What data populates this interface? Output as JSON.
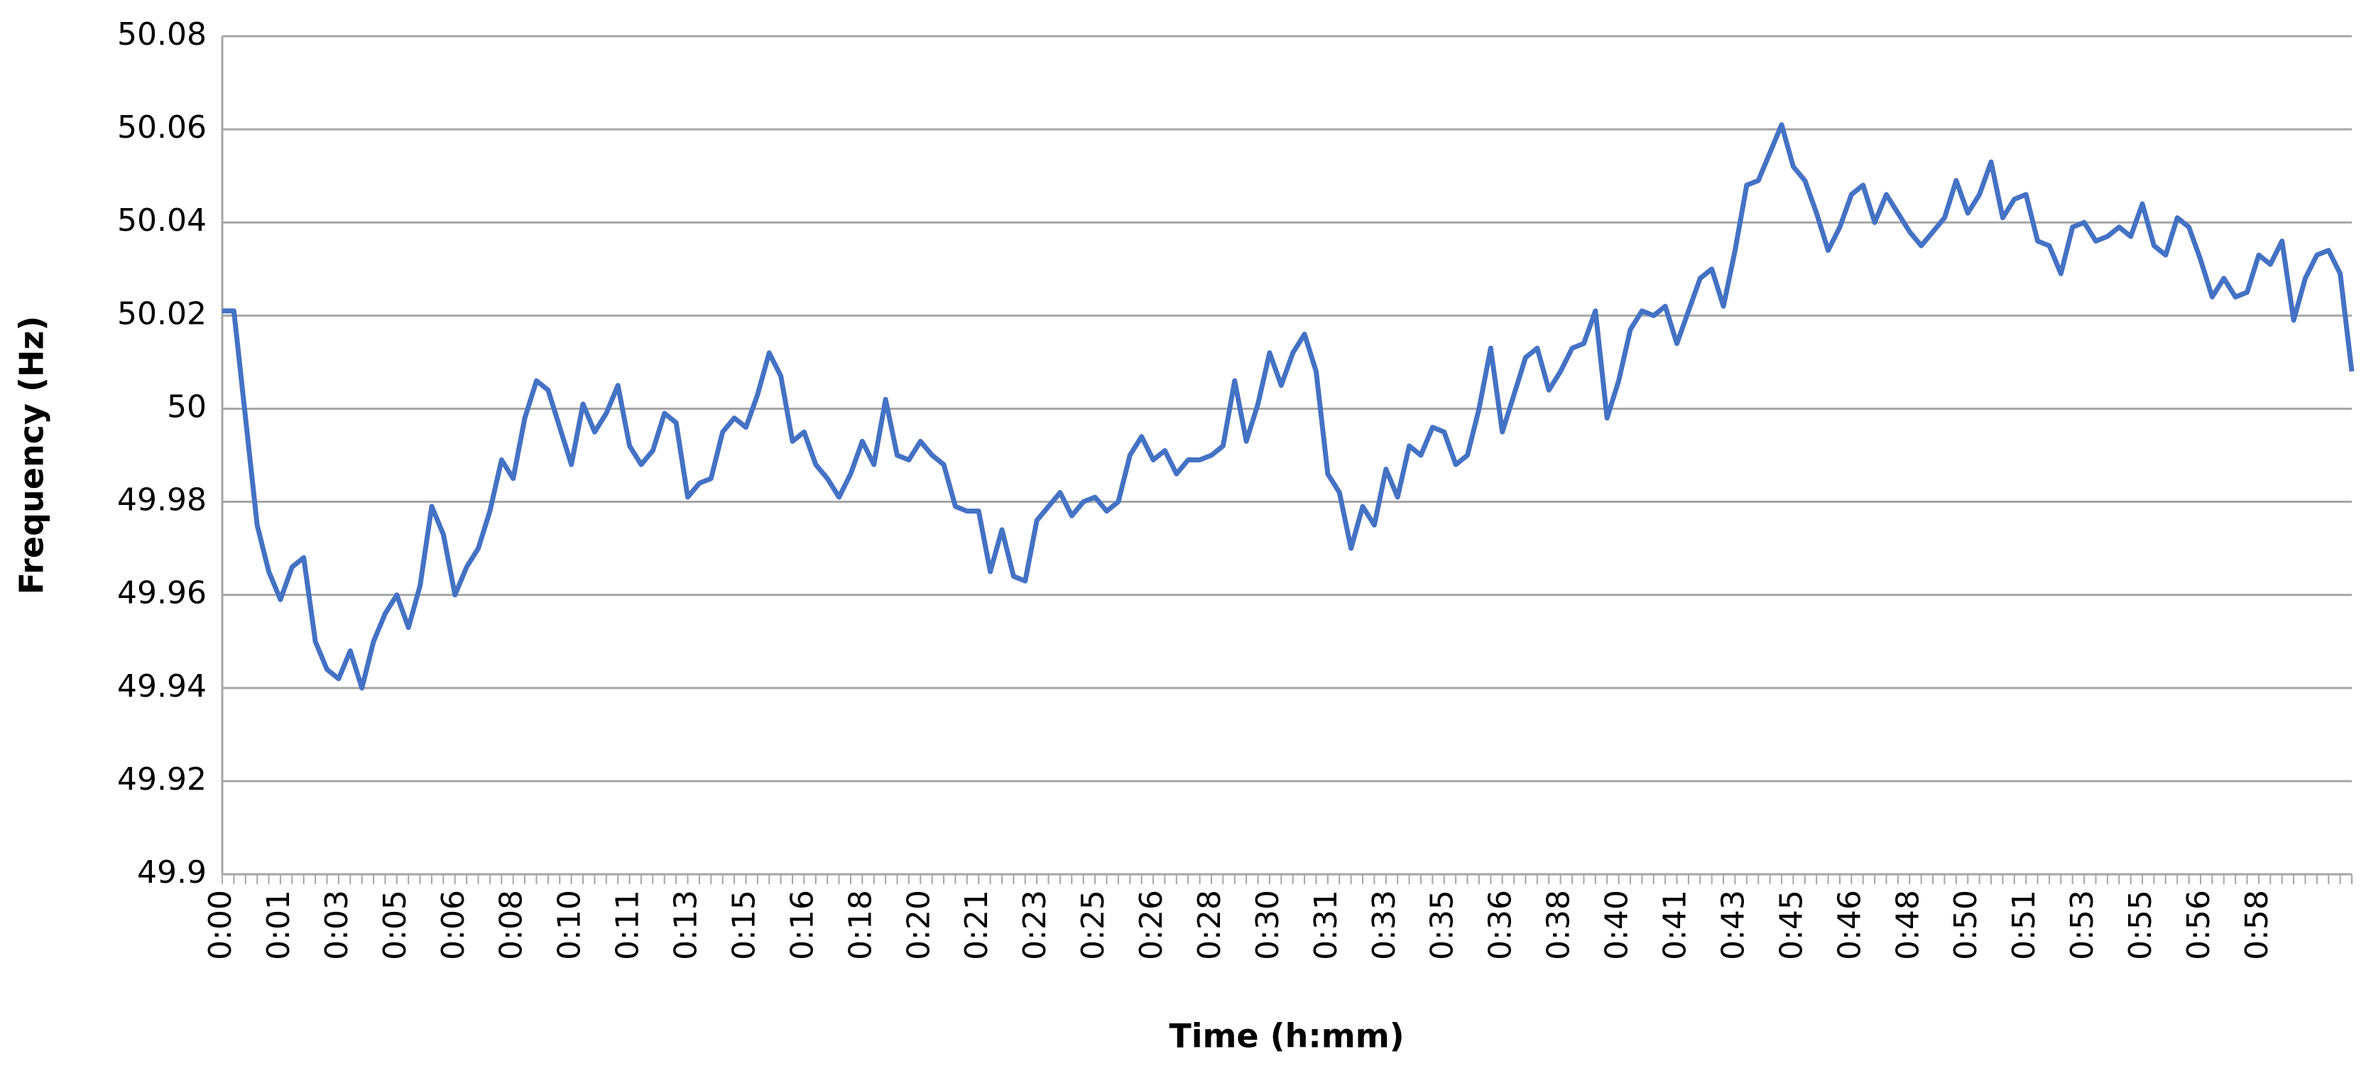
{
  "chart_data": {
    "type": "line",
    "x_label": "Time (h:mm)",
    "y_label": "Frequency (Hz)",
    "categories": [
      "0:00",
      null,
      null,
      null,
      null,
      "0:01",
      null,
      null,
      null,
      null,
      "0:03",
      null,
      null,
      null,
      null,
      "0:05",
      null,
      null,
      null,
      null,
      "0:06",
      null,
      null,
      null,
      null,
      "0:08",
      null,
      null,
      null,
      null,
      "0:10",
      null,
      null,
      null,
      null,
      "0:11",
      null,
      null,
      null,
      null,
      "0:13",
      null,
      null,
      null,
      null,
      "0:15",
      null,
      null,
      null,
      null,
      "0:16",
      null,
      null,
      null,
      null,
      "0:18",
      null,
      null,
      null,
      null,
      "0:20",
      null,
      null,
      null,
      null,
      "0:21",
      null,
      null,
      null,
      null,
      "0:23",
      null,
      null,
      null,
      null,
      "0:25",
      null,
      null,
      null,
      null,
      "0:26",
      null,
      null,
      null,
      null,
      "0:28",
      null,
      null,
      null,
      null,
      "0:30",
      null,
      null,
      null,
      null,
      "0:31",
      null,
      null,
      null,
      null,
      "0:33",
      null,
      null,
      null,
      null,
      "0:35",
      null,
      null,
      null,
      null,
      "0:36",
      null,
      null,
      null,
      null,
      "0:38",
      null,
      null,
      null,
      null,
      "0:40",
      null,
      null,
      null,
      null,
      "0:41",
      null,
      null,
      null,
      null,
      "0:43",
      null,
      null,
      null,
      null,
      "0:45",
      null,
      null,
      null,
      null,
      "0:46",
      null,
      null,
      null,
      null,
      "0:48",
      null,
      null,
      null,
      null,
      "0:50",
      null,
      null,
      null,
      null,
      "0:51",
      null,
      null,
      null,
      null,
      "0:53",
      null,
      null,
      null,
      null,
      "0:55",
      null,
      null,
      null,
      null,
      "0:56",
      null,
      null,
      null,
      null,
      "0:58",
      null,
      null,
      null,
      null,
      null,
      null,
      null,
      null
    ],
    "values": [
      50.021,
      50.021,
      49.998,
      49.975,
      49.965,
      49.959,
      49.966,
      49.968,
      49.95,
      49.944,
      49.942,
      49.948,
      49.94,
      49.95,
      49.956,
      49.96,
      49.953,
      49.962,
      49.979,
      49.973,
      49.96,
      49.966,
      49.97,
      49.978,
      49.989,
      49.985,
      49.998,
      50.006,
      50.004,
      49.996,
      49.988,
      50.001,
      49.995,
      49.999,
      50.005,
      49.992,
      49.988,
      49.991,
      49.999,
      49.997,
      49.981,
      49.984,
      49.985,
      49.995,
      49.998,
      49.996,
      50.003,
      50.012,
      50.007,
      49.993,
      49.995,
      49.988,
      49.985,
      49.981,
      49.986,
      49.993,
      49.988,
      50.002,
      49.99,
      49.989,
      49.993,
      49.99,
      49.988,
      49.979,
      49.978,
      49.978,
      49.965,
      49.974,
      49.964,
      49.963,
      49.976,
      49.979,
      49.982,
      49.977,
      49.98,
      49.981,
      49.978,
      49.98,
      49.99,
      49.994,
      49.989,
      49.991,
      49.986,
      49.989,
      49.989,
      49.99,
      49.992,
      50.006,
      49.993,
      50.001,
      50.012,
      50.005,
      50.012,
      50.016,
      50.008,
      49.986,
      49.982,
      49.97,
      49.979,
      49.975,
      49.987,
      49.981,
      49.992,
      49.99,
      49.996,
      49.995,
      49.988,
      49.99,
      50.0,
      50.013,
      49.995,
      50.003,
      50.011,
      50.013,
      50.004,
      50.008,
      50.013,
      50.014,
      50.021,
      49.998,
      50.006,
      50.017,
      50.021,
      50.02,
      50.022,
      50.014,
      50.021,
      50.028,
      50.03,
      50.022,
      50.034,
      50.048,
      50.049,
      50.055,
      50.061,
      50.052,
      50.049,
      50.042,
      50.034,
      50.039,
      50.046,
      50.048,
      50.04,
      50.046,
      50.042,
      50.038,
      50.035,
      50.038,
      50.041,
      50.049,
      50.042,
      50.046,
      50.053,
      50.041,
      50.045,
      50.046,
      50.036,
      50.035,
      50.029,
      50.039,
      50.04,
      50.036,
      50.037,
      50.039,
      50.037,
      50.044,
      50.035,
      50.033,
      50.041,
      50.039,
      50.032,
      50.024,
      50.028,
      50.024,
      50.025,
      50.033,
      50.031,
      50.036,
      50.019,
      50.028,
      50.033,
      50.034,
      50.029,
      50.008
    ],
    "color": "#4472c4",
    "ylim": [
      49.9,
      50.08
    ],
    "yticks": [
      {
        "value": 49.9,
        "label": "49.9"
      },
      49.92,
      49.94,
      49.96,
      49.98,
      {
        "value": 50,
        "label": "50"
      },
      50.02,
      50.04,
      50.06,
      50.08
    ],
    "grid": true
  }
}
